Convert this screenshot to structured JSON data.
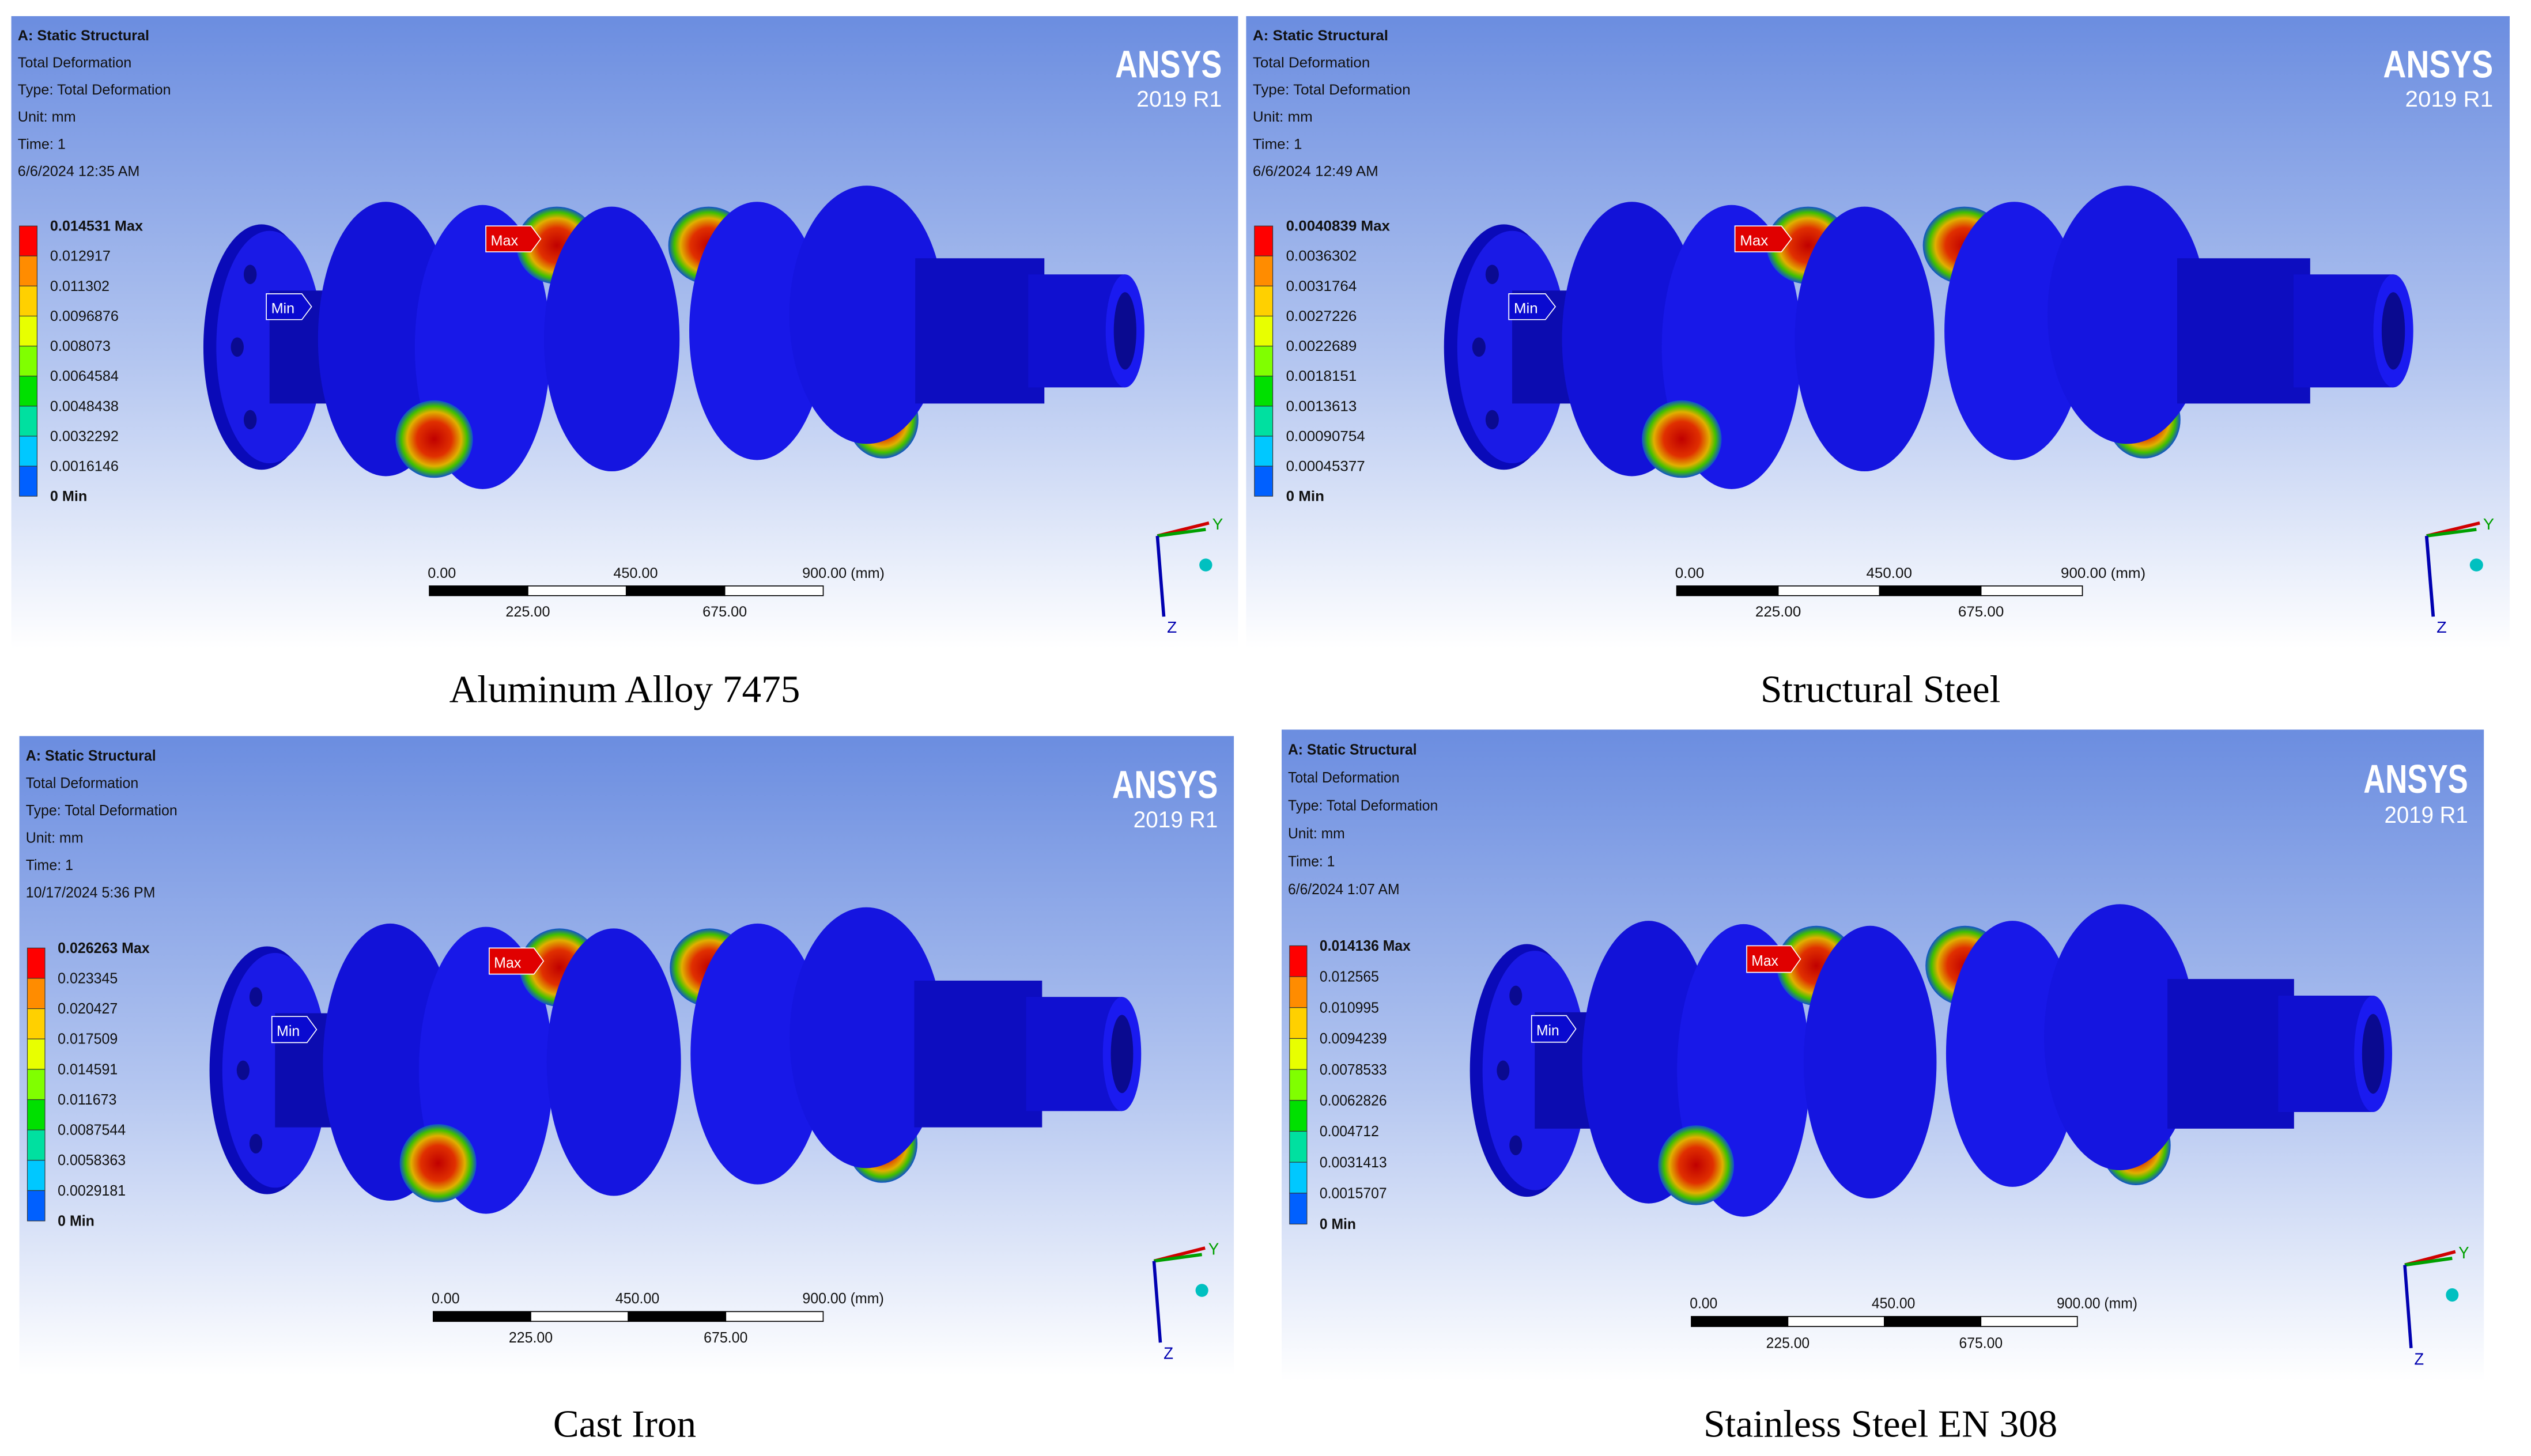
{
  "panels": [
    {
      "header": [
        "A: Static Structural",
        "Total Deformation",
        "Type: Total Deformation",
        "Unit: mm",
        "Time: 1",
        "6/6/2024 12:35 AM"
      ],
      "legend": [
        "0.014531 Max",
        "0.012917",
        "0.011302",
        "0.0096876",
        "0.008073",
        "0.0064584",
        "0.0048438",
        "0.0032292",
        "0.0016146",
        "0 Min"
      ],
      "max_label": "Max",
      "min_label": "Min",
      "brand": "ANSYS",
      "version": "2019 R1",
      "scale_top": [
        "0.00",
        "450.00",
        "900.00 (mm)"
      ],
      "scale_bottom": [
        "225.00",
        "675.00"
      ],
      "axes": [
        "Y",
        "Z"
      ],
      "caption": "Aluminum Alloy 7475"
    },
    {
      "header": [
        "A: Static Structural",
        "Total Deformation",
        "Type: Total Deformation",
        "Unit: mm",
        "Time: 1",
        "6/6/2024 12:49 AM"
      ],
      "legend": [
        "0.0040839 Max",
        "0.0036302",
        "0.0031764",
        "0.0027226",
        "0.0022689",
        "0.0018151",
        "0.0013613",
        "0.00090754",
        "0.00045377",
        "0 Min"
      ],
      "max_label": "Max",
      "min_label": "Min",
      "brand": "ANSYS",
      "version": "2019 R1",
      "scale_top": [
        "0.00",
        "450.00",
        "900.00 (mm)"
      ],
      "scale_bottom": [
        "225.00",
        "675.00"
      ],
      "axes": [
        "Y",
        "Z"
      ],
      "caption": "Structural Steel"
    },
    {
      "header": [
        "A: Static Structural",
        "Total Deformation",
        "Type: Total Deformation",
        "Unit: mm",
        "Time: 1",
        "10/17/2024 5:36 PM"
      ],
      "legend": [
        "0.026263 Max",
        "0.023345",
        "0.020427",
        "0.017509",
        "0.014591",
        "0.011673",
        "0.0087544",
        "0.0058363",
        "0.0029181",
        "0 Min"
      ],
      "max_label": "Max",
      "min_label": "Min",
      "brand": "ANSYS",
      "version": "2019 R1",
      "scale_top": [
        "0.00",
        "450.00",
        "900.00 (mm)"
      ],
      "scale_bottom": [
        "225.00",
        "675.00"
      ],
      "axes": [
        "Y",
        "Z"
      ],
      "caption": "Cast Iron"
    },
    {
      "header": [
        "A: Static Structural",
        "Total Deformation",
        "Type: Total Deformation",
        "Unit: mm",
        "Time: 1",
        "6/6/2024 1:07 AM"
      ],
      "legend": [
        "0.014136 Max",
        "0.012565",
        "0.010995",
        "0.0094239",
        "0.0078533",
        "0.0062826",
        "0.004712",
        "0.0031413",
        "0.0015707",
        "0 Min"
      ],
      "max_label": "Max",
      "min_label": "Min",
      "brand": "ANSYS",
      "version": "2019 R1",
      "scale_top": [
        "0.00",
        "450.00",
        "900.00 (mm)"
      ],
      "scale_bottom": [
        "225.00",
        "675.00"
      ],
      "axes": [
        "Y",
        "Z"
      ],
      "caption": "Stainless Steel EN 308"
    }
  ]
}
